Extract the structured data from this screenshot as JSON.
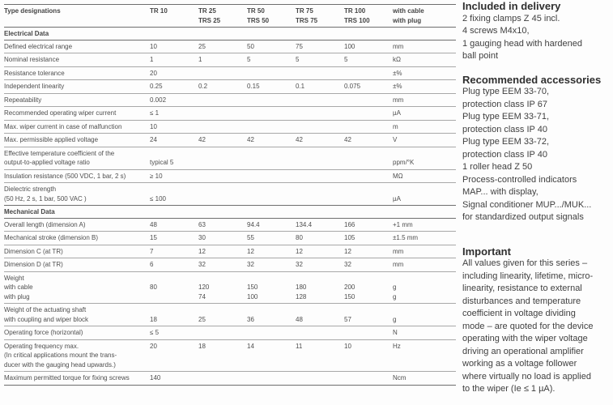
{
  "table": {
    "rows": [
      {
        "header": true,
        "cells": [
          "Type designations",
          "TR 10",
          "TR 25\nTRS 25",
          "TR 50\nTRS 50",
          "TR 75\nTRS 75",
          "TR 100\nTRS 100",
          "with cable\nwith plug"
        ]
      },
      {
        "section": true,
        "label": "Electrical Data"
      },
      {
        "cells": [
          "Defined electrical range",
          "10",
          "25",
          "50",
          "75",
          "100",
          "mm"
        ]
      },
      {
        "cells": [
          "Nominal resistance",
          "1",
          "1",
          "5",
          "5",
          "5",
          "kΩ"
        ]
      },
      {
        "cells": [
          "Resistance tolerance",
          "20",
          "",
          "",
          "",
          "",
          "±%"
        ]
      },
      {
        "cells": [
          "Independent linearity",
          "0.25",
          "0.2",
          "0.15",
          "0.1",
          "0.075",
          "±%"
        ]
      },
      {
        "cells": [
          "Repeatability",
          "0.002",
          "",
          "",
          "",
          "",
          "mm"
        ]
      },
      {
        "cells": [
          "Recommended operating wiper current",
          "≤ 1",
          "",
          "",
          "",
          "",
          "µA"
        ]
      },
      {
        "cells": [
          "Max. wiper current in case of malfunction",
          "10",
          "",
          "",
          "",
          "",
          "m"
        ]
      },
      {
        "cells": [
          "Max. permissible applied voltage",
          "24",
          "42",
          "42",
          "42",
          "42",
          "V"
        ]
      },
      {
        "cells": [
          "Effective temperature coefficient of the\noutput-to-applied voltage ratio",
          "\ntypical  5",
          "",
          "",
          "",
          "",
          "\nppm/°K"
        ]
      },
      {
        "cells": [
          "Insulation resistance (500 VDC, 1 bar, 2 s)",
          "≥ 10",
          "",
          "",
          "",
          "",
          "MΩ"
        ]
      },
      {
        "cells": [
          "Dielectric strength\n(50 Hz, 2 s, 1 bar, 500 VAC )",
          "\n≤ 100",
          "",
          "",
          "",
          "",
          "\nµA"
        ]
      },
      {
        "section": true,
        "label": "Mechanical Data"
      },
      {
        "cells": [
          "Overall length (dimension A)",
          "48",
          "63",
          "94.4",
          "134.4",
          "166",
          "+1 mm"
        ]
      },
      {
        "cells": [
          "Mechanical stroke (dimension B)",
          "15",
          "30",
          "55",
          "80",
          "105",
          "±1.5 mm"
        ]
      },
      {
        "cells": [
          "Dimension C (at TR)",
          "7",
          "12",
          "12",
          "12",
          "12",
          "mm"
        ]
      },
      {
        "cells": [
          "Dimension D (at TR)",
          "6",
          "32",
          "32",
          "32",
          "32",
          "mm"
        ]
      },
      {
        "cells": [
          "Weight\nwith cable\nwith plug",
          "\n80",
          "\n120\n74",
          "\n150\n100",
          "\n180\n128",
          "\n200\n150",
          "\ng\ng"
        ]
      },
      {
        "cells": [
          "Weight of the actuating shaft\nwith coupling and wiper block",
          "\n18",
          "\n25",
          "\n36",
          "\n48",
          "\n57",
          "\ng"
        ]
      },
      {
        "cells": [
          "Operating force (horizontal)",
          "≤ 5",
          "",
          "",
          "",
          "",
          "N"
        ]
      },
      {
        "cells": [
          "Operating frequency max.\n(In critical applications mount the trans-\nducer with the gauging head upwards.)",
          "20",
          "18",
          "14",
          "11",
          "10",
          "Hz"
        ]
      },
      {
        "cells": [
          "Maximum permitted torque for fixing screws",
          "140",
          "",
          "",
          "",
          "",
          "Ncm"
        ]
      }
    ]
  },
  "sidebar": {
    "sections": [
      {
        "title": "Included in delivery",
        "lines": [
          "2 fixing clamps Z 45 incl.",
          "4 screws M4x10,",
          "1 gauging head with hardened",
          "ball point"
        ]
      },
      {
        "title": "Recommended accessories",
        "lines": [
          "Plug type EEM 33-70,",
          "protection class IP 67",
          "Plug type EEM 33-71,",
          "protection class IP 40",
          "Plug type EEM 33-72,",
          "protection class IP 40",
          "1 roller head Z 50",
          "Process-controlled indicators",
          "MAP... with display,",
          "Signal conditioner MUP.../MUK...",
          "for standardized output signals"
        ]
      },
      {
        "title": "Important",
        "lines": [
          "All values given for this series –",
          "including linearity, lifetime, micro-",
          "linearity, resistance to external",
          "disturbances and temperature",
          "coefficient in voltage dividing",
          "mode – are quoted for the device",
          "operating with the wiper voltage",
          "driving an operational amplifier",
          "working as a voltage follower",
          "where virtually no load is applied",
          "to the wiper (Ie ≤ 1 µA)."
        ]
      }
    ]
  }
}
